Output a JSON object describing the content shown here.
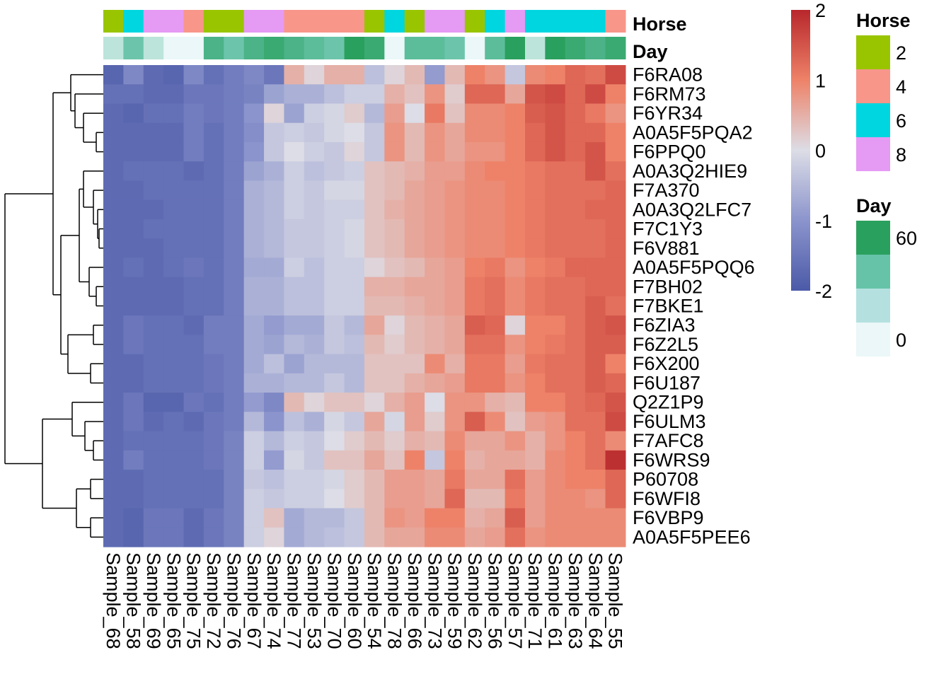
{
  "chart_data": {
    "type": "heatmap",
    "title": "",
    "columns": [
      "Sample_68",
      "Sample_58",
      "Sample_69",
      "Sample_65",
      "Sample_75",
      "Sample_72",
      "Sample_76",
      "Sample_67",
      "Sample_74",
      "Sample_77",
      "Sample_53",
      "Sample_70",
      "Sample_60",
      "Sample_54",
      "Sample_78",
      "Sample_66",
      "Sample_73",
      "Sample_59",
      "Sample_62",
      "Sample_56",
      "Sample_57",
      "Sample_71",
      "Sample_61",
      "Sample_63",
      "Sample_64",
      "Sample_55"
    ],
    "rows": [
      "F6RA08",
      "F6RM73",
      "F6YR34",
      "A0A5F5PQA2",
      "F6PPQ0",
      "A0A3Q2HIE9",
      "F7A370",
      "A0A3Q2LFC7",
      "F7C1Y3",
      "F6V881",
      "A0A5F5PQQ6",
      "F7BH02",
      "F7BKE1",
      "F6ZIA3",
      "F6Z2L5",
      "F6X200",
      "F6U187",
      "Q2Z1P9",
      "F6ULM3",
      "F7AFC8",
      "F6WRS9",
      "P60708",
      "F6WFI8",
      "F6VBP9",
      "A0A5F5PEE6"
    ],
    "column_annotations": {
      "Horse": [
        2,
        6,
        8,
        8,
        4,
        2,
        2,
        8,
        8,
        4,
        4,
        4,
        4,
        2,
        6,
        2,
        8,
        8,
        2,
        6,
        8,
        6,
        6,
        6,
        6,
        4
      ],
      "Day": [
        15,
        40,
        15,
        0,
        0,
        50,
        40,
        50,
        55,
        50,
        45,
        40,
        60,
        55,
        0,
        45,
        45,
        40,
        0,
        45,
        60,
        15,
        60,
        55,
        50,
        55
      ]
    },
    "annotation_labels": [
      "Horse",
      "Day"
    ],
    "color_scale": {
      "min": -2,
      "max": 2,
      "ticks": [
        2,
        1,
        0,
        -1,
        -2
      ],
      "low": "#4b5aa8",
      "mid": "#dcdde6",
      "high": "#b8272c"
    },
    "legends": [
      {
        "title": "Horse",
        "labels": [
          "2",
          "4",
          "6",
          "8"
        ],
        "colors": [
          "#99c400",
          "#f8968a",
          "#00d6df",
          "#e59af4"
        ]
      },
      {
        "title": "Day",
        "labels": [
          "60",
          "",
          "",
          "0"
        ],
        "colors": [
          "#2aa05e",
          "#66c3a7",
          "#b4e1e0",
          "#ebf7f8"
        ]
      }
    ],
    "values": [
      [
        -1.8,
        -1.2,
        -1.7,
        -1.8,
        -1.2,
        -1.6,
        -1.4,
        -1.2,
        -1.5,
        0.5,
        0.1,
        0.5,
        0.5,
        -0.4,
        0.1,
        0.4,
        -0.9,
        0.4,
        1.0,
        0.8,
        -0.3,
        0.9,
        1.0,
        1.3,
        1.2,
        1.6
      ],
      [
        -1.6,
        -1.6,
        -1.7,
        -1.7,
        -1.5,
        -1.5,
        -1.4,
        -1.3,
        -0.8,
        -0.6,
        -0.6,
        -0.4,
        -0.2,
        -0.2,
        0.5,
        0.3,
        0.8,
        0.2,
        1.3,
        1.3,
        0.6,
        1.5,
        1.6,
        1.3,
        1.6,
        1.0
      ],
      [
        -1.7,
        -1.8,
        -1.6,
        -1.6,
        -1.4,
        -1.5,
        -1.4,
        -1.0,
        0.1,
        -0.8,
        -0.2,
        -0.1,
        0.2,
        -0.5,
        0.7,
        0.0,
        1.1,
        0.3,
        0.9,
        0.9,
        1.0,
        1.4,
        1.5,
        1.3,
        1.1,
        0.8
      ],
      [
        -1.7,
        -1.7,
        -1.7,
        -1.7,
        -1.4,
        -1.6,
        -1.4,
        -1.1,
        -0.3,
        -0.2,
        -0.3,
        -0.1,
        0.0,
        -0.3,
        0.8,
        0.4,
        0.8,
        0.6,
        0.9,
        0.9,
        1.0,
        1.3,
        1.5,
        1.3,
        1.3,
        1.0
      ],
      [
        -1.7,
        -1.7,
        -1.7,
        -1.7,
        -1.4,
        -1.6,
        -1.4,
        -1.0,
        -0.3,
        0.0,
        -0.2,
        -0.3,
        0.1,
        -0.3,
        0.8,
        0.4,
        0.8,
        0.6,
        0.8,
        0.8,
        1.0,
        1.3,
        1.5,
        1.3,
        1.5,
        1.0
      ],
      [
        -1.7,
        -1.6,
        -1.6,
        -1.6,
        -1.7,
        -1.6,
        -1.4,
        -0.8,
        -0.6,
        -0.2,
        -0.4,
        -0.3,
        -0.2,
        0.3,
        0.4,
        0.5,
        0.7,
        0.7,
        0.9,
        1.0,
        1.0,
        1.1,
        1.2,
        1.2,
        1.5,
        1.2
      ],
      [
        -1.7,
        -1.7,
        -1.6,
        -1.6,
        -1.6,
        -1.6,
        -1.4,
        -0.6,
        -0.5,
        -0.2,
        -0.3,
        -0.1,
        -0.1,
        0.3,
        0.4,
        0.6,
        0.7,
        0.8,
        0.9,
        0.9,
        1.0,
        1.1,
        1.2,
        1.2,
        1.2,
        1.3
      ],
      [
        -1.7,
        -1.7,
        -1.7,
        -1.6,
        -1.6,
        -1.6,
        -1.4,
        -0.6,
        -0.5,
        -0.2,
        -0.3,
        -0.2,
        -0.2,
        0.3,
        0.5,
        0.6,
        0.7,
        0.8,
        0.9,
        0.9,
        1.0,
        1.1,
        1.2,
        1.2,
        1.3,
        1.3
      ],
      [
        -1.7,
        -1.7,
        -1.6,
        -1.6,
        -1.6,
        -1.6,
        -1.4,
        -0.6,
        -0.5,
        -0.3,
        -0.3,
        -0.2,
        -0.1,
        0.3,
        0.4,
        0.6,
        0.7,
        0.8,
        0.9,
        0.9,
        1.0,
        1.1,
        1.2,
        1.2,
        1.2,
        1.3
      ],
      [
        -1.7,
        -1.7,
        -1.7,
        -1.6,
        -1.6,
        -1.6,
        -1.4,
        -0.6,
        -0.5,
        -0.3,
        -0.3,
        -0.2,
        -0.1,
        0.3,
        0.4,
        0.6,
        0.7,
        0.8,
        0.9,
        0.9,
        1.0,
        1.1,
        1.2,
        1.2,
        1.2,
        1.3
      ],
      [
        -1.7,
        -1.6,
        -1.7,
        -1.6,
        -1.5,
        -1.6,
        -1.4,
        -0.7,
        -0.7,
        -0.2,
        -0.4,
        -0.2,
        -0.2,
        0.1,
        0.3,
        0.4,
        0.6,
        0.7,
        1.0,
        1.1,
        0.8,
        1.0,
        1.1,
        1.3,
        1.3,
        1.3
      ],
      [
        -1.7,
        -1.7,
        -1.7,
        -1.7,
        -1.6,
        -1.6,
        -1.4,
        -0.6,
        -0.6,
        -0.4,
        -0.4,
        -0.2,
        -0.2,
        0.5,
        0.5,
        0.6,
        0.6,
        0.7,
        1.1,
        1.2,
        0.9,
        1.1,
        1.2,
        1.2,
        1.3,
        1.3
      ],
      [
        -1.7,
        -1.7,
        -1.7,
        -1.7,
        -1.6,
        -1.6,
        -1.4,
        -0.6,
        -0.6,
        -0.4,
        -0.4,
        -0.2,
        -0.2,
        0.4,
        0.4,
        0.5,
        0.6,
        0.7,
        1.1,
        1.2,
        0.9,
        1.1,
        1.2,
        1.2,
        1.4,
        1.2
      ],
      [
        -1.7,
        -1.5,
        -1.6,
        -1.6,
        -1.7,
        -1.4,
        -1.4,
        -0.7,
        -0.9,
        -0.7,
        -0.7,
        -0.3,
        -0.5,
        0.6,
        0.1,
        0.4,
        0.5,
        0.6,
        1.4,
        1.3,
        0.1,
        1.0,
        1.0,
        1.2,
        1.4,
        1.5
      ],
      [
        -1.7,
        -1.5,
        -1.6,
        -1.6,
        -1.6,
        -1.4,
        -1.4,
        -0.7,
        -0.8,
        -0.5,
        -0.6,
        -0.3,
        -0.4,
        0.4,
        0.2,
        0.4,
        0.5,
        0.6,
        1.2,
        1.2,
        0.8,
        1.0,
        1.1,
        1.2,
        1.4,
        1.4
      ],
      [
        -1.7,
        -1.7,
        -1.6,
        -1.6,
        -1.6,
        -1.5,
        -1.4,
        -0.7,
        -0.4,
        -0.8,
        -0.5,
        -0.5,
        -0.5,
        0.3,
        0.3,
        0.3,
        0.9,
        0.5,
        1.1,
        1.1,
        0.7,
        1.1,
        1.2,
        1.2,
        1.4,
        1.0
      ],
      [
        -1.7,
        -1.7,
        -1.6,
        -1.6,
        -1.6,
        -1.5,
        -1.4,
        -0.6,
        -0.6,
        -0.5,
        -0.5,
        -0.3,
        -0.5,
        0.3,
        0.3,
        0.5,
        0.6,
        0.7,
        1.1,
        1.1,
        0.8,
        1.0,
        1.2,
        1.2,
        1.4,
        1.3
      ],
      [
        -1.7,
        -1.5,
        -1.8,
        -1.8,
        -1.5,
        -1.6,
        -1.4,
        -0.9,
        -1.2,
        0.4,
        0.1,
        0.3,
        0.3,
        0.1,
        0.5,
        0.7,
        0.0,
        0.8,
        0.8,
        0.5,
        0.4,
        1.0,
        1.0,
        1.2,
        1.3,
        1.5
      ],
      [
        -1.7,
        -1.5,
        -1.7,
        -1.6,
        -1.7,
        -1.5,
        -1.4,
        -0.5,
        -1.0,
        -0.4,
        -0.6,
        -0.1,
        -0.3,
        0.6,
        -0.1,
        0.7,
        0.2,
        0.8,
        1.4,
        0.9,
        0.3,
        0.7,
        0.8,
        1.2,
        1.2,
        1.6
      ],
      [
        -1.7,
        -1.6,
        -1.6,
        -1.6,
        -1.6,
        -1.5,
        -1.3,
        -0.2,
        -0.5,
        -0.2,
        -0.3,
        0.0,
        0.2,
        0.4,
        0.2,
        0.5,
        0.4,
        0.9,
        0.6,
        0.6,
        0.8,
        0.5,
        0.8,
        1.0,
        1.2,
        0.9
      ],
      [
        -1.7,
        -1.4,
        -1.6,
        -1.6,
        -1.6,
        -1.5,
        -1.3,
        -0.2,
        -0.9,
        -0.1,
        -0.3,
        0.3,
        0.3,
        0.6,
        0.3,
        1.0,
        -0.3,
        1.0,
        0.5,
        0.6,
        0.6,
        0.5,
        0.9,
        1.0,
        1.2,
        1.9
      ],
      [
        -1.7,
        -1.7,
        -1.6,
        -1.6,
        -1.6,
        -1.6,
        -1.3,
        -0.3,
        -0.4,
        -0.2,
        -0.2,
        -0.1,
        0.2,
        0.4,
        0.7,
        0.7,
        0.6,
        1.1,
        0.6,
        0.6,
        1.2,
        0.7,
        0.9,
        1.0,
        1.0,
        1.3
      ],
      [
        -1.7,
        -1.7,
        -1.6,
        -1.6,
        -1.6,
        -1.6,
        -1.3,
        -0.2,
        -0.3,
        -0.2,
        -0.2,
        0.0,
        0.2,
        0.4,
        0.7,
        0.7,
        0.6,
        1.3,
        0.4,
        0.4,
        1.1,
        0.7,
        0.9,
        0.9,
        0.8,
        1.3
      ],
      [
        -1.7,
        -1.8,
        -1.5,
        -1.5,
        -1.7,
        -1.5,
        -1.3,
        -0.2,
        0.3,
        -0.7,
        -0.5,
        -0.5,
        -0.3,
        0.4,
        0.8,
        0.7,
        1.0,
        1.0,
        0.5,
        0.6,
        1.4,
        0.7,
        0.9,
        0.9,
        0.9,
        0.9
      ],
      [
        -1.7,
        -1.8,
        -1.5,
        -1.5,
        -1.7,
        -1.5,
        -1.3,
        -0.2,
        0.1,
        -0.7,
        -0.5,
        -0.4,
        -0.3,
        0.4,
        0.6,
        0.6,
        0.9,
        0.9,
        0.6,
        0.7,
        1.2,
        0.8,
        0.9,
        0.9,
        0.9,
        0.9
      ]
    ]
  }
}
